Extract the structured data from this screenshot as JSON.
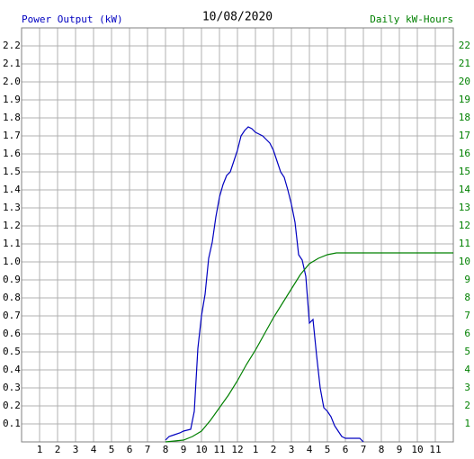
{
  "chart_data": {
    "type": "line",
    "title": "10/08/2020",
    "y_label": "Power Output (kW)",
    "y2_label": "Daily kW-Hours",
    "xlim": [
      0,
      24
    ],
    "xticks": [
      {
        "value": 1,
        "label": "1"
      },
      {
        "value": 2,
        "label": "2"
      },
      {
        "value": 3,
        "label": "3"
      },
      {
        "value": 4,
        "label": "4"
      },
      {
        "value": 5,
        "label": "5"
      },
      {
        "value": 6,
        "label": "6"
      },
      {
        "value": 7,
        "label": "7"
      },
      {
        "value": 8,
        "label": "8"
      },
      {
        "value": 9,
        "label": "9"
      },
      {
        "value": 10,
        "label": "10"
      },
      {
        "value": 11,
        "label": "11"
      },
      {
        "value": 12,
        "label": "12"
      },
      {
        "value": 13,
        "label": "1"
      },
      {
        "value": 14,
        "label": "2"
      },
      {
        "value": 15,
        "label": "3"
      },
      {
        "value": 16,
        "label": "4"
      },
      {
        "value": 17,
        "label": "5"
      },
      {
        "value": 18,
        "label": "6"
      },
      {
        "value": 19,
        "label": "7"
      },
      {
        "value": 20,
        "label": "8"
      },
      {
        "value": 21,
        "label": "9"
      },
      {
        "value": 22,
        "label": "10"
      },
      {
        "value": 23,
        "label": "11"
      }
    ],
    "ylim": [
      0,
      2.3
    ],
    "yticks": [
      0.1,
      0.2,
      0.3,
      0.4,
      0.5,
      0.6,
      0.7,
      0.8,
      0.9,
      {
        "value": 1,
        "label": "1.0"
      },
      1.1,
      1.2,
      1.3,
      1.4,
      1.5,
      1.6,
      1.7,
      1.8,
      1.9,
      {
        "value": 2,
        "label": "2.0"
      },
      2.1,
      2.2
    ],
    "y2lim": [
      0,
      23
    ],
    "y2ticks": [
      1,
      2,
      3,
      4,
      5,
      6,
      7,
      8,
      9,
      10,
      11,
      12,
      13,
      14,
      15,
      16,
      17,
      18,
      19,
      20,
      21,
      22
    ],
    "grid": true,
    "series": [
      {
        "name": "Power Output (kW)",
        "color": "#0000c0",
        "x": [
          8.0,
          8.2,
          8.5,
          8.8,
          9.0,
          9.4,
          9.6,
          9.8,
          10.0,
          10.2,
          10.4,
          10.6,
          10.8,
          11.0,
          11.2,
          11.4,
          11.6,
          11.8,
          12.0,
          12.2,
          12.4,
          12.6,
          12.8,
          13.0,
          13.2,
          13.4,
          13.6,
          13.8,
          14.0,
          14.2,
          14.4,
          14.6,
          14.8,
          15.0,
          15.2,
          15.4,
          15.6,
          15.8,
          16.0,
          16.2,
          16.4,
          16.6,
          16.8,
          17.0,
          17.2,
          17.4,
          17.6,
          17.8,
          18.0,
          18.8,
          19.0
        ],
        "values": [
          0.01,
          0.03,
          0.04,
          0.05,
          0.06,
          0.07,
          0.17,
          0.52,
          0.7,
          0.82,
          1.02,
          1.11,
          1.25,
          1.36,
          1.43,
          1.48,
          1.5,
          1.56,
          1.62,
          1.7,
          1.73,
          1.75,
          1.74,
          1.72,
          1.71,
          1.7,
          1.68,
          1.66,
          1.62,
          1.56,
          1.5,
          1.47,
          1.4,
          1.32,
          1.22,
          1.04,
          1.01,
          0.92,
          0.66,
          0.68,
          0.48,
          0.3,
          0.19,
          0.17,
          0.14,
          0.09,
          0.06,
          0.03,
          0.02,
          0.02,
          0
        ]
      },
      {
        "name": "Daily kW-Hours",
        "color": "#008000",
        "axis": "y2",
        "x": [
          8.0,
          9.0,
          9.5,
          10.0,
          10.5,
          11.0,
          11.5,
          12.0,
          12.5,
          13.0,
          13.5,
          14.0,
          14.5,
          15.0,
          15.5,
          16.0,
          16.5,
          17.0,
          17.5,
          18.0,
          24.0
        ],
        "values": [
          0,
          0.1,
          0.3,
          0.6,
          1.2,
          1.9,
          2.6,
          3.4,
          4.3,
          5.1,
          6.0,
          6.9,
          7.7,
          8.5,
          9.3,
          9.9,
          10.2,
          10.4,
          10.5,
          10.5,
          10.5
        ]
      }
    ]
  }
}
